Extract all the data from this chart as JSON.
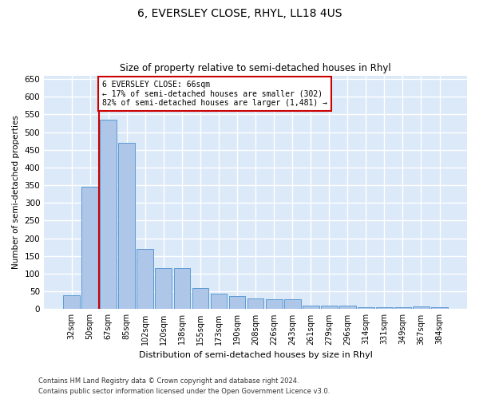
{
  "title": "6, EVERSLEY CLOSE, RHYL, LL18 4US",
  "subtitle": "Size of property relative to semi-detached houses in Rhyl",
  "xlabel": "Distribution of semi-detached houses by size in Rhyl",
  "ylabel": "Number of semi-detached properties",
  "footer_line1": "Contains HM Land Registry data © Crown copyright and database right 2024.",
  "footer_line2": "Contains public sector information licensed under the Open Government Licence v3.0.",
  "bar_color": "#aec6e8",
  "bar_edge_color": "#5b9bd5",
  "background_color": "#dce9f8",
  "grid_color": "#ffffff",
  "red_line_color": "#cc0000",
  "annotation_text": "6 EVERSLEY CLOSE: 66sqm\n← 17% of semi-detached houses are smaller (302)\n82% of semi-detached houses are larger (1,481) →",
  "ylim": [
    0,
    660
  ],
  "yticks": [
    0,
    50,
    100,
    150,
    200,
    250,
    300,
    350,
    400,
    450,
    500,
    550,
    600,
    650
  ],
  "categories": [
    "32sqm",
    "50sqm",
    "67sqm",
    "85sqm",
    "102sqm",
    "120sqm",
    "138sqm",
    "155sqm",
    "173sqm",
    "190sqm",
    "208sqm",
    "226sqm",
    "243sqm",
    "261sqm",
    "279sqm",
    "296sqm",
    "314sqm",
    "331sqm",
    "349sqm",
    "367sqm",
    "384sqm"
  ],
  "values": [
    40,
    345,
    535,
    470,
    170,
    115,
    115,
    60,
    43,
    38,
    30,
    28,
    28,
    10,
    10,
    10,
    6,
    5,
    5,
    8,
    5
  ],
  "bar_width": 0.9,
  "red_line_x": 1.5
}
